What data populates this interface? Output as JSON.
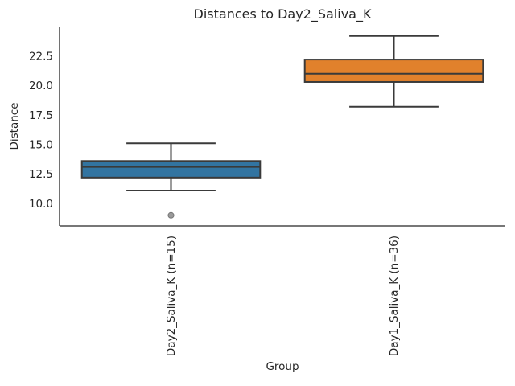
{
  "chart_data": {
    "type": "boxplot",
    "title": "Distances to Day2_Saliva_K",
    "xlabel": "Group",
    "ylabel": "Distance",
    "ylim": [
      8.1,
      25.0
    ],
    "yticks": [
      10.0,
      12.5,
      15.0,
      17.5,
      20.0,
      22.5
    ],
    "grid": false,
    "legend": "none",
    "categories": [
      "Day2_Saliva_K (n=15)",
      "Day1_Saliva_K (n=36)"
    ],
    "series": [
      {
        "name": "Day2_Saliva_K (n=15)",
        "whisker_low": 11.1,
        "q1": 12.2,
        "median": 13.1,
        "q3": 13.6,
        "whisker_high": 15.1,
        "outliers": [
          9.0
        ],
        "fill_color": "#3274a1"
      },
      {
        "name": "Day1_Saliva_K (n=36)",
        "whisker_low": 18.2,
        "q1": 20.3,
        "median": 21.0,
        "q3": 22.2,
        "whisker_high": 24.2,
        "outliers": [],
        "fill_color": "#e1812c"
      }
    ],
    "colors": {
      "box_edge": "#3a3a3a",
      "spine": "#262626",
      "text": "#262626",
      "flier_fill": "#9a9a9a",
      "flier_edge": "#787878",
      "background": "#ffffff"
    }
  }
}
